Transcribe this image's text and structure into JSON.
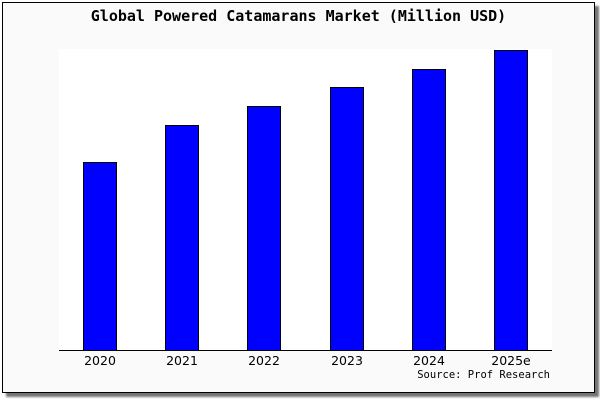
{
  "chart_data": {
    "type": "bar",
    "title": "Global Powered Catamarans Market (Million USD)",
    "categories": [
      "2020",
      "2021",
      "2022",
      "2023",
      "2024",
      "2025e"
    ],
    "values": [
      62.7,
      75.1,
      81.2,
      87.6,
      93.7,
      100
    ],
    "values_note": "relative bar heights in % of tallest bar (2025e); no y-axis tick labels are shown in the chart",
    "xlabel": "",
    "ylabel": "",
    "ylim": [
      0,
      100.3
    ],
    "gridlines": false,
    "legend": false,
    "y_axis_visible": false,
    "source_note": "Source: Prof Research",
    "bar_color": "#0000ff",
    "bar_border_color": "#000000"
  },
  "colors": {
    "figure_background": "#fafafa",
    "plot_background": "#ffffff",
    "frame_border": "#000000",
    "text": "#000000"
  }
}
